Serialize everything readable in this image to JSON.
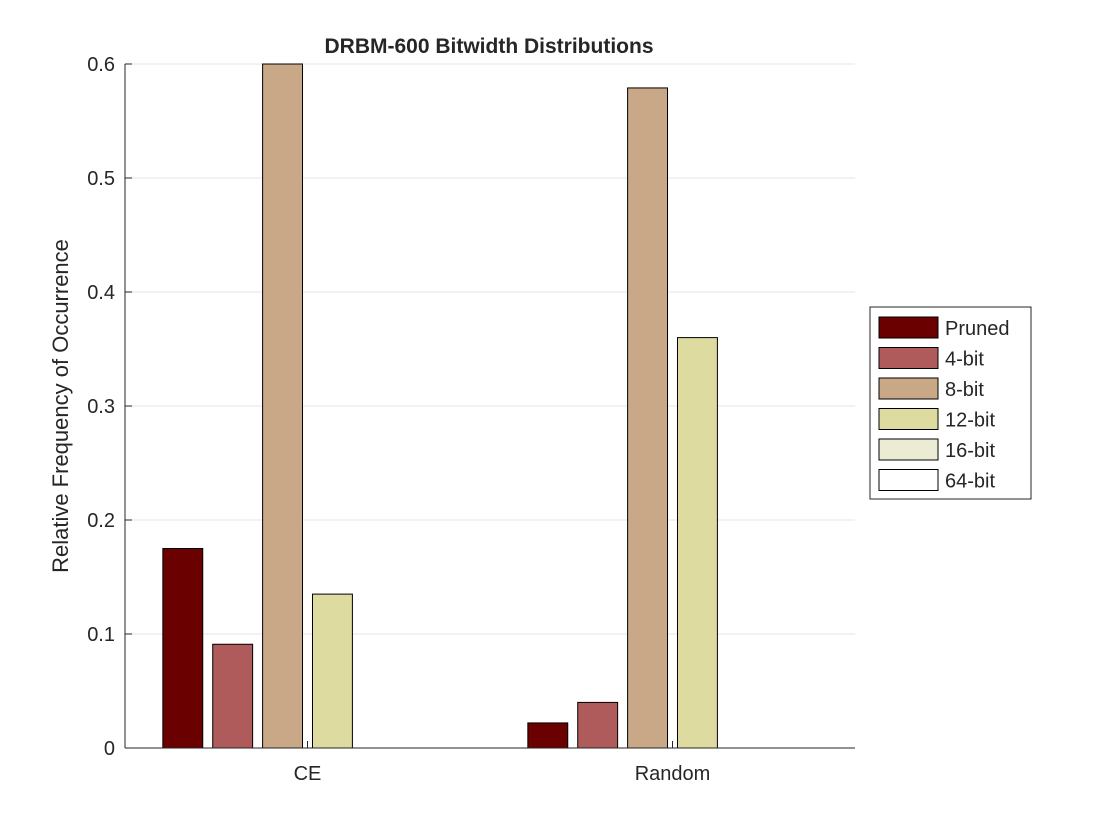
{
  "chart_data": {
    "type": "bar",
    "title": "DRBM-600 Bitwidth Distributions",
    "xlabel": "",
    "ylabel": "Relative Frequency of Occurrence",
    "ylim": [
      0,
      0.6
    ],
    "yticks": [
      "0",
      "0.1",
      "0.2",
      "0.3",
      "0.4",
      "0.5",
      "0.6"
    ],
    "categories": [
      "CE",
      "Random"
    ],
    "grid": true,
    "legend_position": "right",
    "series": [
      {
        "name": "Pruned",
        "color": "#6b0000",
        "values": [
          0.175,
          0.022
        ]
      },
      {
        "name": "4-bit",
        "color": "#b05b5b",
        "values": [
          0.091,
          0.04
        ]
      },
      {
        "name": "8-bit",
        "color": "#c8a886",
        "values": [
          0.6,
          0.579
        ]
      },
      {
        "name": "12-bit",
        "color": "#dedba1",
        "values": [
          0.135,
          0.36
        ]
      },
      {
        "name": "16-bit",
        "color": "#ecebd3",
        "values": [
          0,
          0
        ]
      },
      {
        "name": "64-bit",
        "color": "#ffffff",
        "values": [
          0,
          0
        ]
      }
    ]
  }
}
